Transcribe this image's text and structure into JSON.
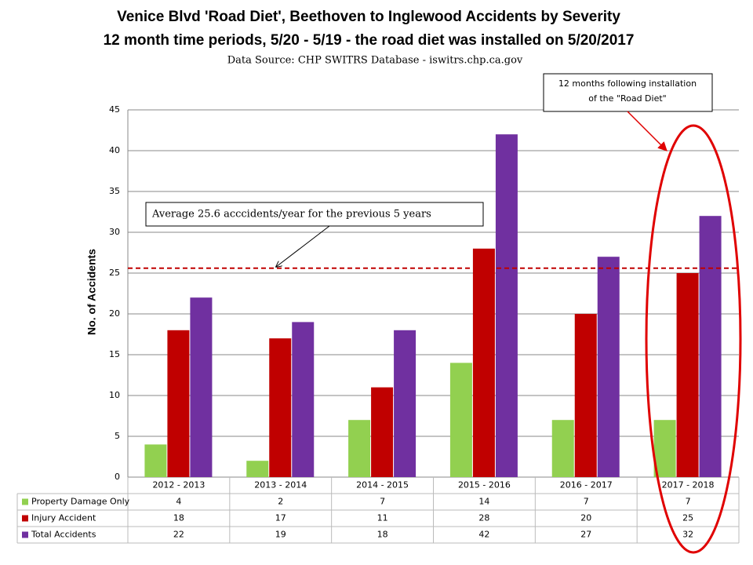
{
  "chart_data": {
    "type": "bar",
    "title": "Venice Blvd 'Road Diet', Beethoven to Inglewood Accidents by Severity",
    "subtitle": "12 month time periods, 5/20 - 5/19 - the road diet was installed on 5/20/2017",
    "source": "Data Source: CHP SWITRS Database  - iswitrs.chp.ca.gov",
    "y_label": "No. of Accidents",
    "categories": [
      "2012 - 2013",
      "2013 - 2014",
      "2014 - 2015",
      "2015 - 2016",
      "2016 - 2017",
      "2017 - 2018"
    ],
    "series": [
      {
        "name": "Property Damage Only",
        "color": "#92d050",
        "values": [
          4,
          2,
          7,
          14,
          7,
          7
        ]
      },
      {
        "name": "Injury Accident",
        "color": "#c00000",
        "values": [
          18,
          17,
          11,
          28,
          20,
          25
        ]
      },
      {
        "name": "Total Accidents",
        "color": "#7030a0",
        "values": [
          22,
          19,
          18,
          42,
          27,
          32
        ]
      }
    ],
    "ylim": [
      0,
      45
    ],
    "yticks": [
      0,
      5,
      10,
      15,
      20,
      25,
      30,
      35,
      40,
      45
    ],
    "grid": true,
    "reference_line": {
      "value": 25.6,
      "color": "#c00000"
    },
    "annotations": [
      {
        "text": "Average 25.6 acccidents/year for the previous 5 years"
      },
      {
        "lines": [
          "12 months following installation",
          "of the \"Road Diet\""
        ]
      }
    ]
  }
}
